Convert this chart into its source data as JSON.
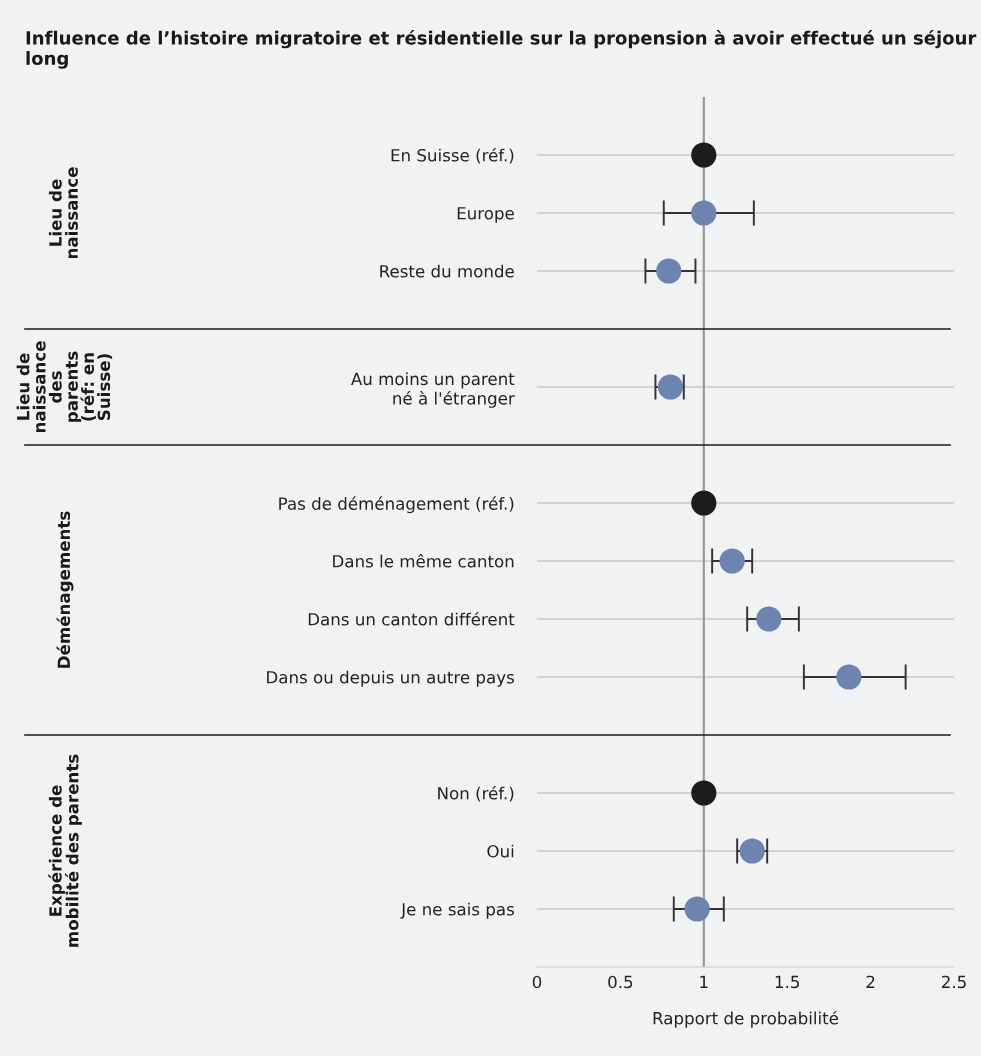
{
  "chart_data": {
    "type": "scatter",
    "orientation": "horizontal",
    "title": "Influence de l’histoire migratoire et résidentielle sur la propension à avoir effectué un séjour long",
    "xlabel": "Rapport de probabilité",
    "categories": [
      null,
      "En Suisse (réf.)",
      "Europe",
      "Reste du monde",
      null,
      "Au moins un parent\nné à l'étranger",
      null,
      "Pas de déménagement (réf.)",
      "Dans le même canton",
      "Dans un canton différent",
      "Dans ou depuis un autre pays",
      null,
      "Non (réf.)",
      "Oui",
      "Je ne sais pas",
      null
    ],
    "values": [
      null,
      1.0,
      1.0,
      0.79,
      null,
      0.8,
      null,
      1.0,
      1.17,
      1.39,
      1.87,
      null,
      1.0,
      1.29,
      0.96,
      null
    ],
    "errors": [
      null,
      null,
      [
        0.76,
        1.3
      ],
      [
        0.65,
        0.95
      ],
      null,
      [
        0.71,
        0.88
      ],
      null,
      null,
      [
        1.05,
        1.29
      ],
      [
        1.26,
        1.57
      ],
      [
        1.6,
        2.21
      ],
      null,
      null,
      [
        1.2,
        1.38
      ],
      [
        0.82,
        1.12
      ],
      null
    ],
    "colors": [
      null,
      "#1e1b1c",
      "#6e84b0",
      "#6e84b0",
      null,
      "#6e84b0",
      null,
      "#1e1b1c",
      "#6e84b0",
      "#6e84b0",
      "#6e84b0",
      null,
      "#1e1b1c",
      "#6e84b0",
      "#6e84b0",
      null
    ],
    "annotations": [
      "Lieu de\nnaissance",
      "Lieu de\nnaissance\ndes\nparents\n(réf: en\nSuisse)",
      "Déménagements",
      "Expérience de\nmobilité des parents"
    ],
    "xlim": [
      0,
      2.5
    ],
    "xticks": [
      0,
      0.5,
      1,
      1.5,
      2,
      2.5
    ],
    "ref_lines": [
      {
        "axis": "x",
        "value": 1,
        "color": "#999999"
      }
    ],
    "grid": "y",
    "marker": "circle"
  }
}
